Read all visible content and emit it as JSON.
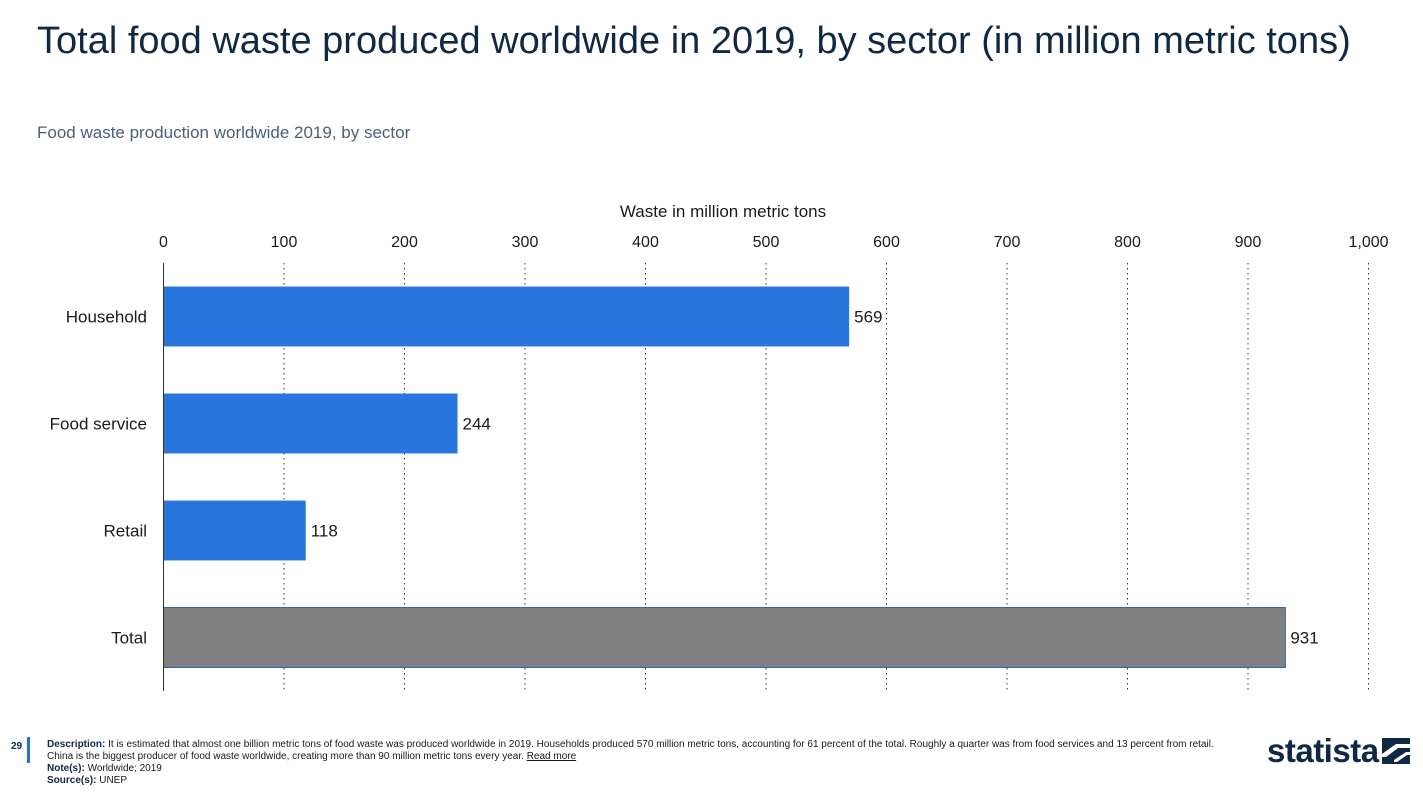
{
  "header": {
    "title": "Total food waste produced worldwide in 2019, by sector (in million metric tons)",
    "subtitle": "Food waste production worldwide 2019, by sector"
  },
  "chart_data": {
    "type": "bar",
    "orientation": "horizontal",
    "xlabel": "Waste in million metric tons",
    "xlim": [
      0,
      1000
    ],
    "xticks": [
      0,
      100,
      200,
      300,
      400,
      500,
      600,
      700,
      800,
      900,
      1000
    ],
    "xtick_labels": [
      "0",
      "100",
      "200",
      "300",
      "400",
      "500",
      "600",
      "700",
      "800",
      "900",
      "1,000"
    ],
    "grid": true,
    "categories": [
      "Household",
      "Food service",
      "Retail",
      "Total"
    ],
    "values": [
      569,
      244,
      118,
      931
    ],
    "value_labels": [
      "569",
      "244",
      "118",
      "931"
    ],
    "colors": [
      "#2876dd",
      "#2876dd",
      "#2876dd",
      "#808080"
    ]
  },
  "footer": {
    "page_number": "29",
    "description_label": "Description:",
    "description": "It is estimated that almost one billion metric tons of food waste was produced worldwide in 2019. Households produced 570 million metric tons, accounting for 61 percent of the total. Roughly a quarter was from food services and 13 percent from retail. China is the biggest producer of food waste worldwide, creating more than 90 million metric tons every year.",
    "read_more": "Read more",
    "notes_label": "Note(s):",
    "notes": "Worldwide; 2019",
    "source_label": "Source(s):",
    "source": "UNEP"
  },
  "logo": {
    "text": "statista",
    "icon": "statista-logo-icon"
  }
}
